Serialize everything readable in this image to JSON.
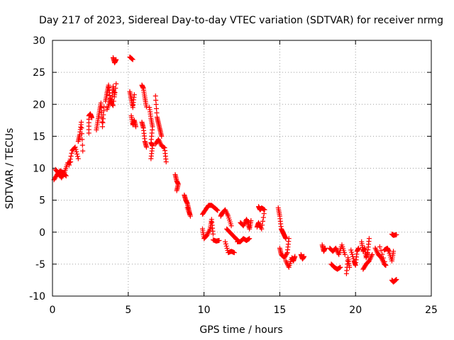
{
  "chart_data": {
    "type": "scatter",
    "title": "Day 217 of 2023, Sidereal Day-to-day VTEC variation (SDTVAR) for receiver nrmg",
    "xlabel": "GPS time / hours",
    "ylabel": "SDTVAR / TECUs",
    "xlim": [
      0,
      25
    ],
    "ylim": [
      -10,
      30
    ],
    "x_ticks": [
      0,
      5,
      10,
      15,
      20,
      25
    ],
    "y_ticks": [
      -10,
      -5,
      0,
      5,
      10,
      15,
      20,
      25,
      30
    ],
    "x_tick_labels": [
      "0",
      "5",
      "10",
      "15",
      "20",
      "25"
    ],
    "y_tick_labels": [
      "-10",
      "-5",
      "0",
      "5",
      "10",
      "15",
      "20",
      "25",
      "30"
    ],
    "grid": true,
    "marker": "+",
    "color": "#ff0000",
    "series": [
      {
        "name": "SDTVAR",
        "arcs": [
          [
            [
              0.1,
              8.2
            ],
            [
              0.3,
              9.0
            ],
            [
              0.5,
              9.6
            ],
            [
              0.7,
              9.3
            ],
            [
              0.9,
              8.8
            ]
          ],
          [
            [
              0.2,
              9.8
            ],
            [
              0.4,
              9.2
            ],
            [
              0.6,
              8.5
            ],
            [
              0.8,
              9.4
            ],
            [
              1.0,
              10.8
            ],
            [
              1.2,
              11.0
            ]
          ],
          [
            [
              1.1,
              10.5
            ],
            [
              1.3,
              12.8
            ],
            [
              1.5,
              13.3
            ],
            [
              1.7,
              11.5
            ]
          ],
          [
            [
              1.7,
              14.2
            ],
            [
              1.8,
              15.3
            ],
            [
              1.9,
              17.2
            ],
            [
              2.0,
              12.7
            ]
          ],
          [
            [
              2.4,
              15.5
            ],
            [
              2.4,
              18.2
            ],
            [
              2.5,
              18.5
            ],
            [
              2.6,
              17.9
            ]
          ],
          [
            [
              2.9,
              16.0
            ],
            [
              3.0,
              17.5
            ],
            [
              3.1,
              18.9
            ],
            [
              3.2,
              20.2
            ],
            [
              3.3,
              16.5
            ],
            [
              3.4,
              19.6
            ]
          ],
          [
            [
              3.5,
              20.5
            ],
            [
              3.6,
              21.8
            ],
            [
              3.7,
              23.0
            ],
            [
              3.8,
              21.0
            ],
            [
              3.9,
              20.2
            ],
            [
              4.0,
              22.8
            ],
            [
              4.1,
              21.5
            ]
          ],
          [
            [
              3.6,
              19.2
            ],
            [
              3.8,
              20.5
            ],
            [
              4.0,
              19.8
            ],
            [
              4.2,
              23.2
            ]
          ],
          [
            [
              4.0,
              27.3
            ],
            [
              4.1,
              26.5
            ],
            [
              4.2,
              27.0
            ]
          ],
          [
            [
              5.1,
              27.4
            ],
            [
              5.3,
              27.0
            ]
          ],
          [
            [
              5.1,
              22.0
            ],
            [
              5.2,
              20.8
            ],
            [
              5.3,
              19.5
            ],
            [
              5.4,
              21.5
            ]
          ],
          [
            [
              5.2,
              18.2
            ],
            [
              5.3,
              16.8
            ],
            [
              5.4,
              17.5
            ],
            [
              5.5,
              16.5
            ]
          ],
          [
            [
              5.9,
              23.0
            ],
            [
              6.0,
              22.5
            ],
            [
              6.1,
              21.0
            ],
            [
              6.2,
              19.6
            ]
          ],
          [
            [
              5.9,
              17.2
            ],
            [
              6.0,
              16.3
            ],
            [
              6.1,
              14.2
            ],
            [
              6.2,
              13.3
            ]
          ],
          [
            [
              6.4,
              19.5
            ],
            [
              6.5,
              17.8
            ],
            [
              6.6,
              16.5
            ],
            [
              6.5,
              14.0
            ],
            [
              6.6,
              13.5
            ],
            [
              6.5,
              11.5
            ]
          ],
          [
            [
              6.8,
              21.3
            ],
            [
              6.9,
              18.0
            ],
            [
              7.0,
              17.0
            ],
            [
              7.1,
              16.0
            ],
            [
              7.2,
              15.0
            ]
          ],
          [
            [
              6.8,
              13.8
            ],
            [
              7.0,
              14.5
            ],
            [
              7.2,
              13.5
            ],
            [
              7.4,
              13.2
            ],
            [
              7.5,
              11.0
            ]
          ],
          [
            [
              8.1,
              9.0
            ],
            [
              8.2,
              8.0
            ],
            [
              8.3,
              7.5
            ],
            [
              8.2,
              6.5
            ]
          ],
          [
            [
              8.7,
              5.8
            ],
            [
              8.8,
              5.0
            ],
            [
              8.9,
              4.5
            ],
            [
              9.0,
              3.5
            ],
            [
              9.1,
              2.5
            ],
            [
              8.9,
              3.8
            ]
          ],
          [
            [
              9.9,
              2.8
            ],
            [
              10.1,
              3.5
            ],
            [
              10.3,
              4.2
            ],
            [
              10.5,
              4.2
            ],
            [
              10.7,
              3.8
            ],
            [
              10.9,
              3.4
            ]
          ],
          [
            [
              9.9,
              0.5
            ],
            [
              10.0,
              -1.0
            ],
            [
              10.2,
              -0.5
            ],
            [
              10.4,
              0.5
            ],
            [
              10.5,
              2.0
            ],
            [
              10.6,
              -0.3
            ]
          ],
          [
            [
              10.6,
              -1.2
            ],
            [
              10.8,
              -1.4
            ],
            [
              11.0,
              -1.3
            ]
          ],
          [
            [
              11.1,
              2.5
            ],
            [
              11.2,
              3.0
            ],
            [
              11.4,
              3.5
            ],
            [
              11.6,
              2.5
            ],
            [
              11.8,
              1.0
            ]
          ],
          [
            [
              11.4,
              -1.5
            ],
            [
              11.6,
              -3.2
            ],
            [
              11.8,
              -3.0
            ],
            [
              12.0,
              -3.2
            ]
          ],
          [
            [
              11.5,
              0.5
            ],
            [
              11.7,
              0.0
            ],
            [
              11.9,
              -0.5
            ],
            [
              12.1,
              -1.0
            ],
            [
              12.2,
              -1.2
            ]
          ],
          [
            [
              12.2,
              -1.5
            ],
            [
              12.4,
              -1.5
            ],
            [
              12.6,
              -1.0
            ],
            [
              12.8,
              -1.3
            ],
            [
              13.0,
              -1.0
            ]
          ],
          [
            [
              12.4,
              1.5
            ],
            [
              12.6,
              1.0
            ],
            [
              12.8,
              2.0
            ],
            [
              12.9,
              1.5
            ],
            [
              13.0,
              0.5
            ],
            [
              13.1,
              1.8
            ]
          ],
          [
            [
              13.6,
              4.0
            ],
            [
              13.7,
              3.5
            ],
            [
              13.8,
              3.8
            ],
            [
              14.0,
              3.5
            ],
            [
              13.8,
              0.5
            ],
            [
              13.6,
              1.5
            ],
            [
              13.5,
              0.8
            ]
          ],
          [
            [
              14.9,
              3.8
            ],
            [
              15.0,
              2.5
            ],
            [
              15.1,
              0.5
            ],
            [
              15.2,
              0.0
            ],
            [
              15.3,
              -0.5
            ],
            [
              15.4,
              -1.0
            ]
          ],
          [
            [
              15.0,
              -2.5
            ],
            [
              15.1,
              -3.5
            ],
            [
              15.3,
              -4.0
            ],
            [
              15.5,
              -3.2
            ],
            [
              15.6,
              -1.0
            ]
          ],
          [
            [
              15.4,
              -4.5
            ],
            [
              15.6,
              -5.5
            ],
            [
              15.8,
              -4.0
            ],
            [
              15.9,
              -4.5
            ],
            [
              16.0,
              -3.8
            ]
          ],
          [
            [
              16.4,
              -3.5
            ],
            [
              16.5,
              -4.2
            ],
            [
              16.6,
              -3.8
            ]
          ],
          [
            [
              17.8,
              -2.0
            ],
            [
              17.9,
              -3.0
            ],
            [
              18.0,
              -2.5
            ]
          ],
          [
            [
              18.3,
              -2.5
            ],
            [
              18.5,
              -3.0
            ],
            [
              18.7,
              -2.5
            ],
            [
              18.9,
              -3.5
            ],
            [
              19.1,
              -2.0
            ],
            [
              19.3,
              -3.5
            ]
          ],
          [
            [
              18.4,
              -5.0
            ],
            [
              18.6,
              -5.5
            ],
            [
              18.8,
              -5.8
            ],
            [
              19.0,
              -5.5
            ]
          ],
          [
            [
              19.4,
              -6.5
            ],
            [
              19.5,
              -4.0
            ],
            [
              19.6,
              -5.5
            ]
          ],
          [
            [
              19.7,
              -2.8
            ],
            [
              19.9,
              -4.5
            ],
            [
              20.0,
              -5.2
            ],
            [
              20.1,
              -3.0
            ],
            [
              20.2,
              -2.5
            ]
          ],
          [
            [
              20.4,
              -1.5
            ],
            [
              20.5,
              -3.0
            ],
            [
              20.6,
              -2.5
            ],
            [
              20.7,
              -4.0
            ],
            [
              20.8,
              -3.2
            ],
            [
              20.9,
              -1.0
            ]
          ],
          [
            [
              20.5,
              -5.8
            ],
            [
              20.7,
              -5.0
            ],
            [
              20.9,
              -4.5
            ],
            [
              21.1,
              -3.5
            ]
          ],
          [
            [
              21.3,
              -2.5
            ],
            [
              21.5,
              -3.5
            ],
            [
              21.7,
              -4.0
            ],
            [
              21.9,
              -5.0
            ],
            [
              22.0,
              -5.2
            ],
            [
              21.6,
              -2.3
            ]
          ],
          [
            [
              21.9,
              -2.8
            ],
            [
              22.1,
              -2.5
            ],
            [
              22.2,
              -3.0
            ],
            [
              22.4,
              -4.5
            ],
            [
              22.5,
              -3.0
            ]
          ],
          [
            [
              22.4,
              -0.3
            ],
            [
              22.5,
              -0.5
            ],
            [
              22.7,
              -0.4
            ]
          ],
          [
            [
              22.4,
              -7.5
            ],
            [
              22.5,
              -7.8
            ],
            [
              22.7,
              -7.4
            ]
          ]
        ]
      }
    ]
  }
}
